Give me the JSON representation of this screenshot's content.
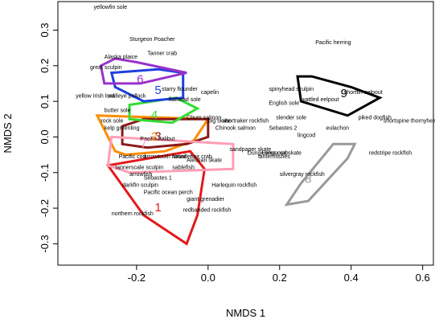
{
  "chart_data": {
    "type": "scatter",
    "xlabel": "NMDS 1",
    "ylabel": "NMDS 2",
    "xlim": [
      -0.42,
      0.63
    ],
    "ylim": [
      -0.36,
      0.38
    ],
    "xticks": [
      "-0.2",
      "0.0",
      "0.2",
      "0.4",
      "0.6"
    ],
    "yticks": [
      "-0.3",
      "-0.2",
      "-0.1",
      "0.0",
      "0.1",
      "0.2",
      "0.3"
    ],
    "grid": false,
    "species": [
      {
        "name": "yellowfin sole",
        "x": -0.32,
        "y": 0.36
      },
      {
        "name": "Sturgeon Poacher",
        "x": -0.22,
        "y": 0.27
      },
      {
        "name": "Pacific herring",
        "x": 0.3,
        "y": 0.26
      },
      {
        "name": "Tanner crab",
        "x": -0.17,
        "y": 0.23
      },
      {
        "name": "Alaska plaice",
        "x": -0.29,
        "y": 0.22
      },
      {
        "name": "great sculpin",
        "x": -0.33,
        "y": 0.19
      },
      {
        "name": "starry flounder",
        "x": -0.13,
        "y": 0.13
      },
      {
        "name": "capelin",
        "x": -0.02,
        "y": 0.12
      },
      {
        "name": "spinyhead sculpin",
        "x": 0.17,
        "y": 0.13
      },
      {
        "name": "shortfin eelpout",
        "x": 0.38,
        "y": 0.12
      },
      {
        "name": "yellow Irish lord",
        "x": -0.37,
        "y": 0.11
      },
      {
        "name": "walleye pollock",
        "x": -0.28,
        "y": 0.11
      },
      {
        "name": "flathead sole",
        "x": -0.11,
        "y": 0.1
      },
      {
        "name": "wattled eelpout",
        "x": 0.26,
        "y": 0.1
      },
      {
        "name": "English sole",
        "x": 0.17,
        "y": 0.09
      },
      {
        "name": "butter sole",
        "x": -0.29,
        "y": 0.07
      },
      {
        "name": "Chum salmon",
        "x": -0.06,
        "y": 0.05
      },
      {
        "name": "slender sole",
        "x": 0.19,
        "y": 0.05
      },
      {
        "name": "piked dogfish",
        "x": 0.42,
        "y": 0.05
      },
      {
        "name": "rock sole",
        "x": -0.3,
        "y": 0.04
      },
      {
        "name": "big skate",
        "x": 0.0,
        "y": 0.04
      },
      {
        "name": "shortraker rockfish",
        "x": 0.04,
        "y": 0.04
      },
      {
        "name": "shortspine thornyhead",
        "x": 0.49,
        "y": 0.04
      },
      {
        "name": "kelp greenling",
        "x": -0.29,
        "y": 0.02
      },
      {
        "name": "Chinook salmon",
        "x": 0.02,
        "y": 0.02
      },
      {
        "name": "Sebastes 2",
        "x": 0.17,
        "y": 0.02
      },
      {
        "name": "eulachon",
        "x": 0.33,
        "y": 0.02
      },
      {
        "name": "lingcod",
        "x": 0.25,
        "y": 0.0
      },
      {
        "name": "Pacific halibut",
        "x": -0.19,
        "y": -0.01
      },
      {
        "name": "sandpaper skate",
        "x": 0.06,
        "y": -0.04
      },
      {
        "name": "Dungeness crab",
        "x": 0.11,
        "y": -0.05
      },
      {
        "name": "Longnose skate",
        "x": 0.15,
        "y": -0.05
      },
      {
        "name": "redstripe rockfish",
        "x": 0.45,
        "y": -0.05
      },
      {
        "name": "Pacific cod",
        "x": -0.25,
        "y": -0.06
      },
      {
        "name": "arrowtooth flounder",
        "x": -0.18,
        "y": -0.06
      },
      {
        "name": "rattail",
        "x": -0.1,
        "y": -0.06
      },
      {
        "name": "hair crab",
        "x": -0.05,
        "y": -0.06
      },
      {
        "name": "Aleutian skate",
        "x": -0.06,
        "y": -0.07
      },
      {
        "name": "lanternfishes",
        "x": 0.14,
        "y": -0.06
      },
      {
        "name": "tannerscale sculpin",
        "x": -0.26,
        "y": -0.09
      },
      {
        "name": "sablefish",
        "x": -0.1,
        "y": -0.09
      },
      {
        "name": "arrowfish",
        "x": -0.22,
        "y": -0.11
      },
      {
        "name": "Sebastes 1",
        "x": -0.18,
        "y": -0.12
      },
      {
        "name": "silvergray rockfish",
        "x": 0.2,
        "y": -0.11
      },
      {
        "name": "darkfin sculpin",
        "x": -0.24,
        "y": -0.14
      },
      {
        "name": "Harlequin rockfish",
        "x": 0.01,
        "y": -0.14
      },
      {
        "name": "Pacific ocean perch",
        "x": -0.18,
        "y": -0.16
      },
      {
        "name": "giant grenadier",
        "x": -0.06,
        "y": -0.18
      },
      {
        "name": "northern rockfish",
        "x": -0.27,
        "y": -0.22
      },
      {
        "name": "redbanded rockfish",
        "x": -0.07,
        "y": -0.21
      }
    ],
    "clusters": [
      {
        "label": "1",
        "color": "#e41a1c",
        "center": [
          -0.14,
          -0.2
        ],
        "hull": [
          [
            -0.28,
            -0.08
          ],
          [
            -0.05,
            -0.04
          ],
          [
            -0.01,
            -0.09
          ],
          [
            -0.03,
            -0.22
          ],
          [
            -0.06,
            -0.3
          ],
          [
            -0.18,
            -0.22
          ]
        ]
      },
      {
        "label": "2",
        "color": "#ff8c00",
        "center": [
          -0.15,
          0.0
        ],
        "hull": [
          [
            -0.31,
            0.06
          ],
          [
            0.0,
            0.05
          ],
          [
            -0.04,
            -0.01
          ],
          [
            -0.12,
            -0.04
          ],
          [
            -0.23,
            -0.05
          ],
          [
            -0.26,
            -0.04
          ]
        ]
      },
      {
        "label": "3",
        "color": "#8b1a1a",
        "center": [
          -0.14,
          0.0
        ],
        "hull": [
          [
            -0.24,
            0.03
          ],
          [
            -0.18,
            0.05
          ],
          [
            0.0,
            0.05
          ],
          [
            0.0,
            0.0
          ],
          [
            -0.06,
            -0.02
          ],
          [
            -0.17,
            -0.03
          ],
          [
            -0.24,
            -0.02
          ]
        ]
      },
      {
        "label": "4",
        "color": "#33dd33",
        "center": [
          -0.15,
          0.06
        ],
        "hull": [
          [
            -0.22,
            0.09
          ],
          [
            -0.09,
            0.11
          ],
          [
            -0.03,
            0.08
          ],
          [
            -0.1,
            0.04
          ],
          [
            -0.22,
            0.05
          ]
        ]
      },
      {
        "label": "5",
        "color": "#1f3fe0",
        "center": [
          -0.14,
          0.13
        ],
        "hull": [
          [
            -0.27,
            0.18
          ],
          [
            -0.14,
            0.19
          ],
          [
            -0.07,
            0.18
          ],
          [
            -0.07,
            0.11
          ],
          [
            -0.18,
            0.1
          ],
          [
            -0.26,
            0.14
          ]
        ]
      },
      {
        "label": "6",
        "color": "#9932cc",
        "center": [
          -0.19,
          0.16
        ],
        "hull": [
          [
            -0.3,
            0.2
          ],
          [
            -0.26,
            0.22
          ],
          [
            -0.2,
            0.21
          ],
          [
            -0.06,
            0.18
          ],
          [
            -0.19,
            0.15
          ],
          [
            -0.29,
            0.15
          ]
        ]
      },
      {
        "label": "7",
        "color": "#ff9eb5",
        "center": [
          -0.18,
          -0.02
        ],
        "hull": [
          [
            -0.27,
            0.0
          ],
          [
            0.07,
            -0.02
          ],
          [
            0.07,
            -0.09
          ],
          [
            -0.22,
            -0.1
          ],
          [
            -0.28,
            -0.08
          ]
        ]
      },
      {
        "label": "8",
        "color": "#999999",
        "center": [
          0.28,
          -0.12
        ],
        "hull": [
          [
            0.35,
            -0.02
          ],
          [
            0.41,
            -0.02
          ],
          [
            0.39,
            -0.06
          ],
          [
            0.28,
            -0.18
          ],
          [
            0.22,
            -0.19
          ],
          [
            0.26,
            -0.13
          ]
        ]
      },
      {
        "label": "9",
        "color": "#000000",
        "center": [
          0.38,
          0.12
        ],
        "hull": [
          [
            0.25,
            0.17
          ],
          [
            0.29,
            0.17
          ],
          [
            0.4,
            0.14
          ],
          [
            0.48,
            0.11
          ],
          [
            0.39,
            0.06
          ],
          [
            0.26,
            0.1
          ]
        ]
      }
    ]
  }
}
